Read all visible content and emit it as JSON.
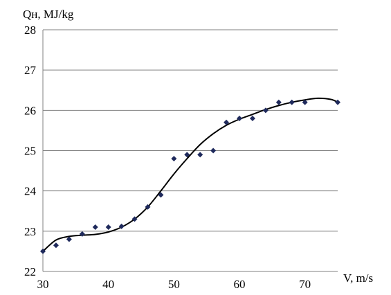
{
  "chart_data": {
    "type": "scatter",
    "ylabel": "Qн, MJ/kg",
    "xlabel": "V, m/s",
    "xlim": [
      30,
      75
    ],
    "ylim": [
      22,
      28
    ],
    "xticks": [
      "30",
      "40",
      "50",
      "60",
      "70"
    ],
    "yticks": [
      "22",
      "23",
      "24",
      "25",
      "26",
      "27",
      "28"
    ],
    "grid": "horizontal",
    "marker_color": "#1f2a5c",
    "line_color": "#000000",
    "points": [
      {
        "x": 30,
        "y": 22.5
      },
      {
        "x": 32,
        "y": 22.65
      },
      {
        "x": 34,
        "y": 22.8
      },
      {
        "x": 36,
        "y": 22.93
      },
      {
        "x": 38,
        "y": 23.1
      },
      {
        "x": 40,
        "y": 23.1
      },
      {
        "x": 42,
        "y": 23.12
      },
      {
        "x": 44,
        "y": 23.3
      },
      {
        "x": 46,
        "y": 23.6
      },
      {
        "x": 48,
        "y": 23.9
      },
      {
        "x": 50,
        "y": 24.8
      },
      {
        "x": 52,
        "y": 24.9
      },
      {
        "x": 54,
        "y": 24.9
      },
      {
        "x": 56,
        "y": 25.0
      },
      {
        "x": 58,
        "y": 25.7
      },
      {
        "x": 60,
        "y": 25.8
      },
      {
        "x": 62,
        "y": 25.8
      },
      {
        "x": 64,
        "y": 26.0
      },
      {
        "x": 66,
        "y": 26.2
      },
      {
        "x": 68,
        "y": 26.2
      },
      {
        "x": 70,
        "y": 26.2
      },
      {
        "x": 75,
        "y": 26.2
      }
    ],
    "trend": [
      {
        "x": 30,
        "y": 22.5
      },
      {
        "x": 32,
        "y": 22.78
      },
      {
        "x": 34,
        "y": 22.87
      },
      {
        "x": 36,
        "y": 22.9
      },
      {
        "x": 38,
        "y": 22.92
      },
      {
        "x": 40,
        "y": 22.98
      },
      {
        "x": 42,
        "y": 23.1
      },
      {
        "x": 44,
        "y": 23.3
      },
      {
        "x": 46,
        "y": 23.6
      },
      {
        "x": 48,
        "y": 24.0
      },
      {
        "x": 50,
        "y": 24.42
      },
      {
        "x": 52,
        "y": 24.8
      },
      {
        "x": 54,
        "y": 25.15
      },
      {
        "x": 56,
        "y": 25.42
      },
      {
        "x": 58,
        "y": 25.63
      },
      {
        "x": 60,
        "y": 25.78
      },
      {
        "x": 62,
        "y": 25.9
      },
      {
        "x": 64,
        "y": 26.02
      },
      {
        "x": 66,
        "y": 26.12
      },
      {
        "x": 68,
        "y": 26.2
      },
      {
        "x": 70,
        "y": 26.26
      },
      {
        "x": 72,
        "y": 26.3
      },
      {
        "x": 74,
        "y": 26.27
      },
      {
        "x": 75,
        "y": 26.2
      }
    ]
  }
}
